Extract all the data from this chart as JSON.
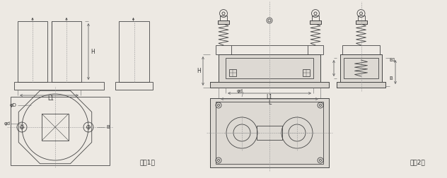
{
  "bg_color": "#ede9e3",
  "line_color": "#444444",
  "dim_color": "#666666",
  "title_fig1": "图（1）",
  "title_fig2": "图（2）",
  "label_H": "H",
  "label_L1": "L1",
  "label_L": "L",
  "label_B": "B",
  "label_B1": "B1",
  "label_phiD": "φD",
  "label_phid": "φd"
}
